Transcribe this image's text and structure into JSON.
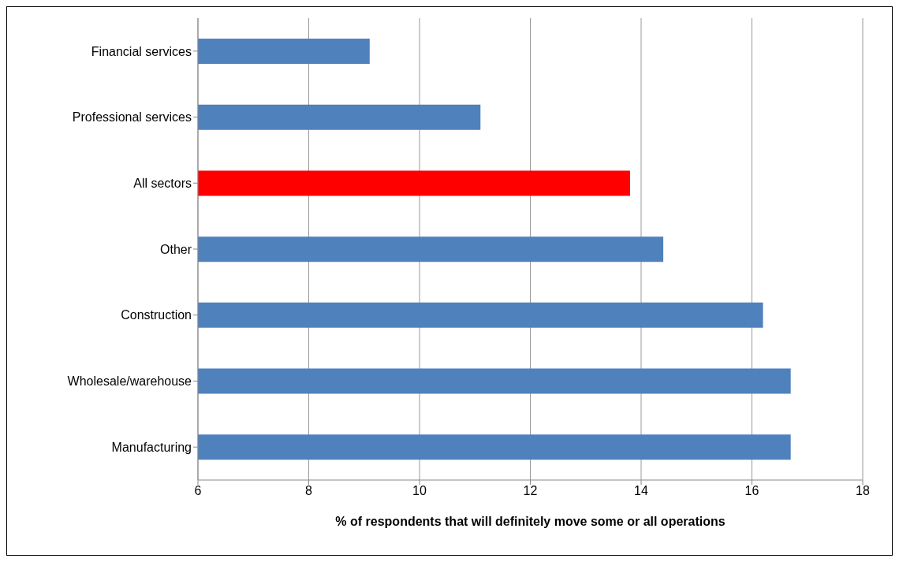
{
  "chart_data": {
    "type": "bar",
    "orientation": "horizontal",
    "xlabel": "% of respondents that will definitely move some or all operations",
    "categories": [
      "Financial services",
      "Professional services",
      "All sectors",
      "Other",
      "Construction",
      "Wholesale/warehouse",
      "Manufacturing"
    ],
    "values": [
      9.1,
      11.1,
      13.8,
      14.4,
      16.2,
      16.7,
      16.7
    ],
    "colors": [
      "#4f81bd",
      "#4f81bd",
      "#ff0000",
      "#4f81bd",
      "#4f81bd",
      "#4f81bd",
      "#4f81bd"
    ],
    "xlim": [
      6,
      18
    ],
    "xticks": [
      6,
      8,
      10,
      12,
      14,
      16,
      18
    ],
    "grid": "x"
  }
}
